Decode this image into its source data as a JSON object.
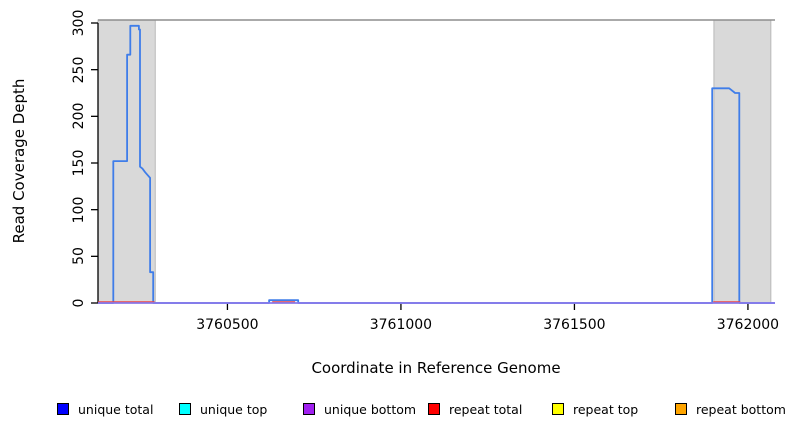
{
  "axes": {
    "x_label": "Coordinate in Reference Genome",
    "y_label": "Read Coverage Depth",
    "x_tick_labels": [
      "3760500",
      "3761000",
      "3761500",
      "3762000"
    ],
    "x_tick_values": [
      3760500,
      3761000,
      3761500,
      3762000
    ],
    "y_tick_labels": [
      "0",
      "50",
      "100",
      "150",
      "200",
      "250",
      "300"
    ],
    "y_tick_values": [
      0,
      50,
      100,
      150,
      200,
      250,
      300
    ]
  },
  "legend": {
    "items": [
      {
        "label": "unique total",
        "color": "#0000FF"
      },
      {
        "label": "unique top",
        "color": "#00FFFF"
      },
      {
        "label": "unique bottom",
        "color": "#A020F0"
      },
      {
        "label": "repeat total",
        "color": "#FF0000"
      },
      {
        "label": "repeat top",
        "color": "#FFFF00"
      },
      {
        "label": "repeat bottom",
        "color": "#FFA500"
      }
    ]
  },
  "chart_data": {
    "type": "line",
    "title": "",
    "xlabel": "Coordinate in Reference Genome",
    "ylabel": "Read Coverage Depth",
    "xlim": [
      3760127,
      3762078
    ],
    "ylim": [
      0,
      300
    ],
    "grid": false,
    "legend_position": "bottom",
    "colors": {
      "highlight_fill": "#d9d9d9",
      "highlight_border": "#b8b8b8",
      "plot_top_border": "#8e8e8e",
      "axis": "#000000",
      "unique_total_line": "#3f7de9",
      "repeat_total_line": "#ee4545",
      "unique_bottom_line": "#8878ea"
    },
    "highlight_regions": [
      {
        "name": "repeat-region-left",
        "x0": 3760127,
        "x1": 3760292
      },
      {
        "name": "repeat-region-right",
        "x0": 3761902,
        "x1": 3762066
      }
    ],
    "series": [
      {
        "name": "unique total",
        "color": "#3f7de9",
        "segments": [
          [
            [
              3760127,
              0
            ],
            [
              3760171,
              0
            ],
            [
              3760171,
              152
            ],
            [
              3760211,
              152
            ],
            [
              3760211,
              266
            ],
            [
              3760220,
              266
            ],
            [
              3760220,
              297
            ],
            [
              3760245,
              297
            ],
            [
              3760245,
              293
            ],
            [
              3760248,
              293
            ],
            [
              3760248,
              146
            ],
            [
              3760255,
              144
            ],
            [
              3760263,
              140
            ],
            [
              3760270,
              137
            ],
            [
              3760277,
              134
            ],
            [
              3760277,
              33
            ],
            [
              3760286,
              33
            ],
            [
              3760286,
              0
            ],
            [
              3760620,
              0
            ],
            [
              3760620,
              3
            ],
            [
              3760704,
              3
            ],
            [
              3760704,
              0
            ],
            [
              3761897,
              0
            ],
            [
              3761897,
              230
            ],
            [
              3761946,
              230
            ],
            [
              3761963,
              225
            ],
            [
              3761975,
              225
            ],
            [
              3761975,
              0
            ],
            [
              3762078,
              0
            ]
          ]
        ]
      },
      {
        "name": "repeat total",
        "color": "#ee4545",
        "segments": [
          [
            [
              3760127,
              1
            ],
            [
              3760290,
              1
            ]
          ],
          [
            [
              3760629,
              1
            ],
            [
              3760695,
              1
            ]
          ],
          [
            [
              3761900,
              1
            ],
            [
              3761978,
              1
            ]
          ]
        ]
      },
      {
        "name": "unique bottom",
        "color": "#8878ea",
        "segments": [
          [
            [
              3760127,
              0
            ],
            [
              3762078,
              0
            ]
          ]
        ]
      }
    ]
  }
}
